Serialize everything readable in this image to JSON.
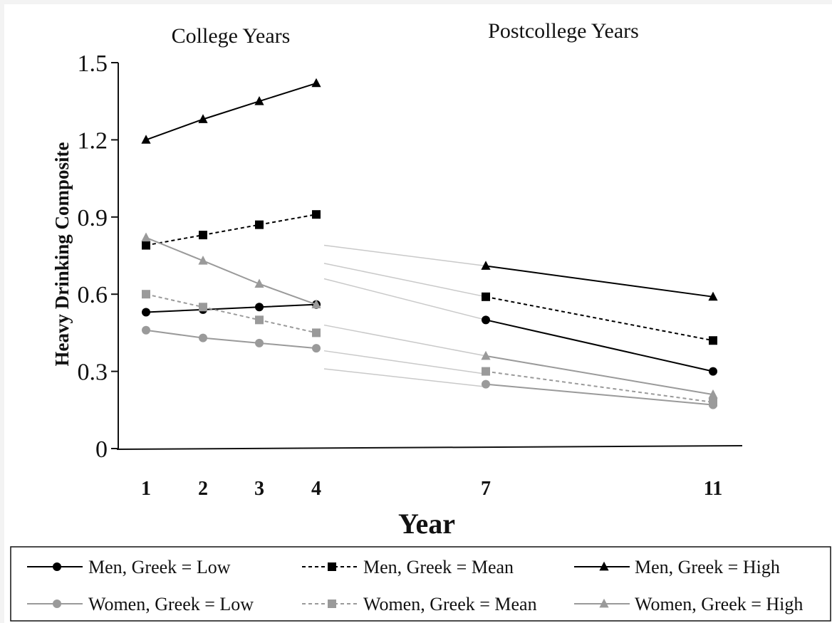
{
  "chart_data": {
    "type": "line",
    "period_labels": [
      "College Years",
      "Postcollege Years"
    ],
    "xlabel": "Year",
    "ylabel": "Heavy Drinking Composite",
    "x": [
      1,
      2,
      3,
      4,
      7,
      11
    ],
    "x_tick_labels": [
      "1",
      "2",
      "3",
      "4",
      "7",
      "11"
    ],
    "ylim": [
      0,
      1.5
    ],
    "y_ticks": [
      0,
      0.3,
      0.6,
      0.9,
      1.2,
      1.5
    ],
    "y_tick_labels": [
      "0",
      "0.3",
      "0.6",
      "0.9",
      "1.2",
      "1.5"
    ],
    "legend_position": "bottom",
    "series": [
      {
        "name": "Men, Greek = Low",
        "color": "#000000",
        "dash": "solid",
        "marker": "circle",
        "college": [
          [
            1,
            0.53
          ],
          [
            2,
            0.54
          ],
          [
            3,
            0.55
          ],
          [
            4,
            0.56
          ]
        ],
        "post": [
          [
            7,
            0.5
          ],
          [
            11,
            0.3
          ]
        ]
      },
      {
        "name": "Men, Greek = Mean",
        "color": "#000000",
        "dash": "dotted",
        "marker": "square",
        "college": [
          [
            1,
            0.79
          ],
          [
            2,
            0.83
          ],
          [
            3,
            0.87
          ],
          [
            4,
            0.91
          ]
        ],
        "post": [
          [
            7,
            0.59
          ],
          [
            11,
            0.42
          ]
        ]
      },
      {
        "name": "Men, Greek = High",
        "color": "#000000",
        "dash": "solid",
        "marker": "triangle",
        "college": [
          [
            1,
            1.2
          ],
          [
            2,
            1.28
          ],
          [
            3,
            1.35
          ],
          [
            4,
            1.42
          ]
        ],
        "post": [
          [
            7,
            0.71
          ],
          [
            11,
            0.59
          ]
        ]
      },
      {
        "name": "Women, Greek = Low",
        "color": "#9a9a9a",
        "dash": "solid",
        "marker": "circle",
        "college": [
          [
            1,
            0.46
          ],
          [
            2,
            0.43
          ],
          [
            3,
            0.41
          ],
          [
            4,
            0.39
          ]
        ],
        "post": [
          [
            7,
            0.25
          ],
          [
            11,
            0.17
          ]
        ]
      },
      {
        "name": "Women, Greek = Mean",
        "color": "#9a9a9a",
        "dash": "dotted",
        "marker": "square",
        "college": [
          [
            1,
            0.6
          ],
          [
            2,
            0.55
          ],
          [
            3,
            0.5
          ],
          [
            4,
            0.45
          ]
        ],
        "post": [
          [
            7,
            0.3
          ],
          [
            11,
            0.18
          ]
        ]
      },
      {
        "name": "Women, Greek = High",
        "color": "#9a9a9a",
        "dash": "solid",
        "marker": "triangle",
        "college": [
          [
            1,
            0.82
          ],
          [
            2,
            0.73
          ],
          [
            3,
            0.64
          ],
          [
            4,
            0.56
          ]
        ],
        "post": [
          [
            7,
            0.36
          ],
          [
            11,
            0.21
          ]
        ]
      }
    ]
  }
}
